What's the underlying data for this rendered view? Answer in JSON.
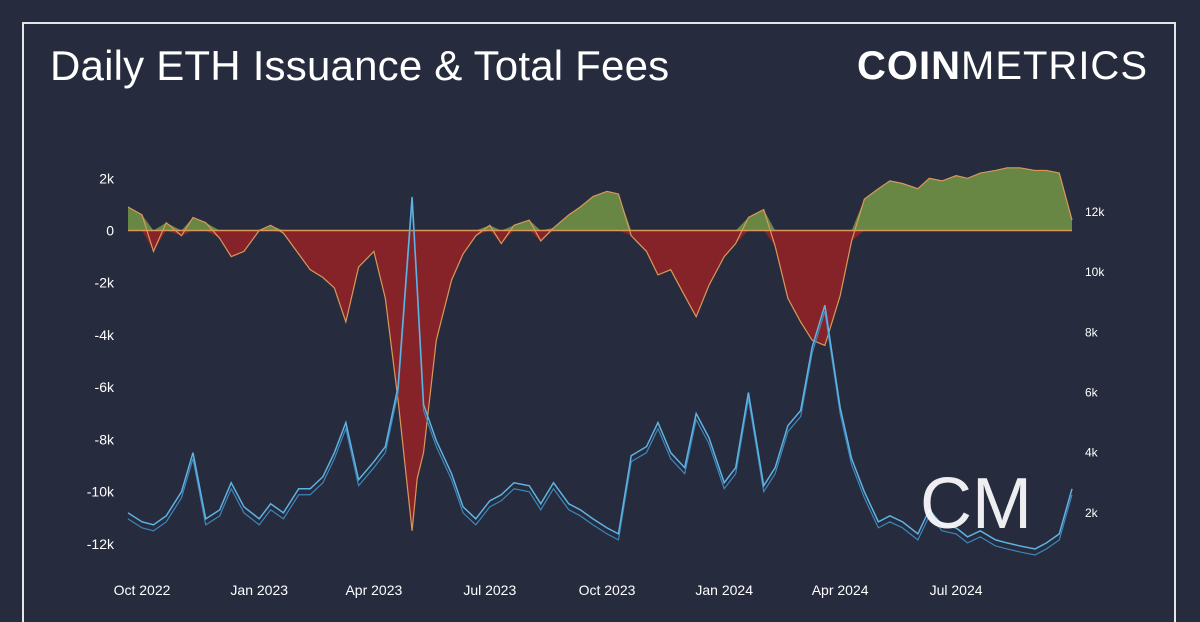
{
  "title": "Daily ETH Issuance & Total Fees",
  "logo": {
    "bold": "COIN",
    "thin": "METRICS"
  },
  "watermark": "CM",
  "colors": {
    "background": "#262b3d",
    "positive_fill": "#6b8b45",
    "negative_fill": "#8b2327",
    "area_line": "#d9985a",
    "fees_line": "#5fb3e3",
    "fees_line_2": "#3f86b8"
  },
  "chart_data": {
    "type": "area",
    "x_ticks": [
      "Oct 2022",
      "Jan 2023",
      "Apr 2023",
      "Jul 2023",
      "Oct 2023",
      "Jan 2024",
      "Apr 2024",
      "Jul 2024"
    ],
    "y_left": {
      "min": -13000,
      "max": 2700,
      "ticks": [
        2000,
        0,
        -2000,
        -4000,
        -6000,
        -8000,
        -10000,
        -12000
      ],
      "tick_labels": [
        "2k",
        "0",
        "-2k",
        "-4k",
        "-6k",
        "-8k",
        "-10k",
        "-12k"
      ]
    },
    "y_right": {
      "min": 0,
      "max": 14000,
      "ticks": [
        12000,
        10000,
        8000,
        6000,
        4000,
        2000
      ],
      "tick_labels": [
        "12k",
        "10k",
        "8k",
        "6k",
        "4k",
        "2k"
      ]
    },
    "issuance_series": {
      "axis": "left",
      "x": [
        "2022-09-20",
        "2022-10-01",
        "2022-10-10",
        "2022-10-20",
        "2022-11-01",
        "2022-11-10",
        "2022-11-20",
        "2022-12-01",
        "2022-12-10",
        "2022-12-20",
        "2023-01-01",
        "2023-01-10",
        "2023-01-20",
        "2023-02-01",
        "2023-02-10",
        "2023-02-20",
        "2023-03-01",
        "2023-03-10",
        "2023-03-20",
        "2023-04-01",
        "2023-04-10",
        "2023-04-20",
        "2023-05-01",
        "2023-05-05",
        "2023-05-10",
        "2023-05-20",
        "2023-06-01",
        "2023-06-10",
        "2023-06-20",
        "2023-07-01",
        "2023-07-10",
        "2023-07-20",
        "2023-08-01",
        "2023-08-10",
        "2023-08-20",
        "2023-09-01",
        "2023-09-10",
        "2023-09-20",
        "2023-10-01",
        "2023-10-10",
        "2023-10-20",
        "2023-11-01",
        "2023-11-10",
        "2023-11-20",
        "2023-12-01",
        "2023-12-10",
        "2023-12-20",
        "2024-01-01",
        "2024-01-10",
        "2024-01-20",
        "2024-02-01",
        "2024-02-10",
        "2024-02-20",
        "2024-03-01",
        "2024-03-10",
        "2024-03-20",
        "2024-04-01",
        "2024-04-10",
        "2024-04-20",
        "2024-05-01",
        "2024-05-10",
        "2024-05-20",
        "2024-06-01",
        "2024-06-10",
        "2024-06-20",
        "2024-07-01",
        "2024-07-10",
        "2024-07-20",
        "2024-08-01",
        "2024-08-10",
        "2024-08-20",
        "2024-09-01",
        "2024-09-10",
        "2024-09-20",
        "2024-09-30"
      ],
      "values": [
        900,
        600,
        -800,
        300,
        -200,
        500,
        300,
        -300,
        -1000,
        -800,
        0,
        200,
        -100,
        -900,
        -1500,
        -1800,
        -2200,
        -3500,
        -1400,
        -800,
        -2600,
        -6500,
        -11500,
        -9500,
        -8500,
        -4200,
        -1900,
        -900,
        -200,
        200,
        -500,
        200,
        400,
        -400,
        100,
        600,
        900,
        1300,
        1500,
        1400,
        -200,
        -800,
        -1700,
        -1500,
        -2500,
        -3300,
        -2100,
        -1000,
        -500,
        500,
        800,
        -600,
        -2600,
        -3500,
        -4200,
        -4400,
        -2500,
        -400,
        1200,
        1600,
        1900,
        1800,
        1600,
        2000,
        1900,
        2100,
        2000,
        2200,
        2300,
        2400,
        2400,
        2300,
        2300,
        2200,
        400
      ]
    },
    "fees_series": {
      "axis": "right",
      "x": [
        "2022-09-20",
        "2022-10-01",
        "2022-10-10",
        "2022-10-20",
        "2022-11-01",
        "2022-11-10",
        "2022-11-20",
        "2022-12-01",
        "2022-12-10",
        "2022-12-20",
        "2023-01-01",
        "2023-01-10",
        "2023-01-20",
        "2023-02-01",
        "2023-02-10",
        "2023-02-20",
        "2023-03-01",
        "2023-03-10",
        "2023-03-20",
        "2023-04-01",
        "2023-04-10",
        "2023-04-20",
        "2023-05-01",
        "2023-05-05",
        "2023-05-10",
        "2023-05-20",
        "2023-06-01",
        "2023-06-10",
        "2023-06-20",
        "2023-07-01",
        "2023-07-10",
        "2023-07-20",
        "2023-08-01",
        "2023-08-10",
        "2023-08-20",
        "2023-09-01",
        "2023-09-10",
        "2023-09-20",
        "2023-10-01",
        "2023-10-10",
        "2023-10-20",
        "2023-11-01",
        "2023-11-10",
        "2023-11-20",
        "2023-12-01",
        "2023-12-10",
        "2023-12-20",
        "2024-01-01",
        "2024-01-10",
        "2024-01-20",
        "2024-02-01",
        "2024-02-10",
        "2024-02-20",
        "2024-03-01",
        "2024-03-10",
        "2024-03-20",
        "2024-04-01",
        "2024-04-10",
        "2024-04-20",
        "2024-05-01",
        "2024-05-10",
        "2024-05-20",
        "2024-06-01",
        "2024-06-10",
        "2024-06-20",
        "2024-07-01",
        "2024-07-10",
        "2024-07-20",
        "2024-08-01",
        "2024-08-10",
        "2024-08-20",
        "2024-09-01",
        "2024-09-10",
        "2024-09-20",
        "2024-09-30"
      ],
      "values": [
        2000,
        1700,
        1600,
        1900,
        2700,
        4000,
        1800,
        2100,
        3000,
        2200,
        1800,
        2300,
        2000,
        2800,
        2800,
        3200,
        4000,
        5000,
        3100,
        3700,
        4200,
        6200,
        12500,
        9500,
        5600,
        4400,
        3300,
        2200,
        1800,
        2400,
        2600,
        3000,
        2900,
        2300,
        3000,
        2300,
        2100,
        1800,
        1500,
        1300,
        3900,
        4200,
        5000,
        4000,
        3500,
        5300,
        4500,
        3000,
        3500,
        6000,
        2900,
        3500,
        4900,
        5400,
        7500,
        8900,
        5500,
        3800,
        2700,
        1700,
        1900,
        1700,
        1300,
        2100,
        1600,
        1500,
        1200,
        1400,
        1100,
        1000,
        900,
        800,
        1000,
        1300,
        2800
      ]
    }
  }
}
